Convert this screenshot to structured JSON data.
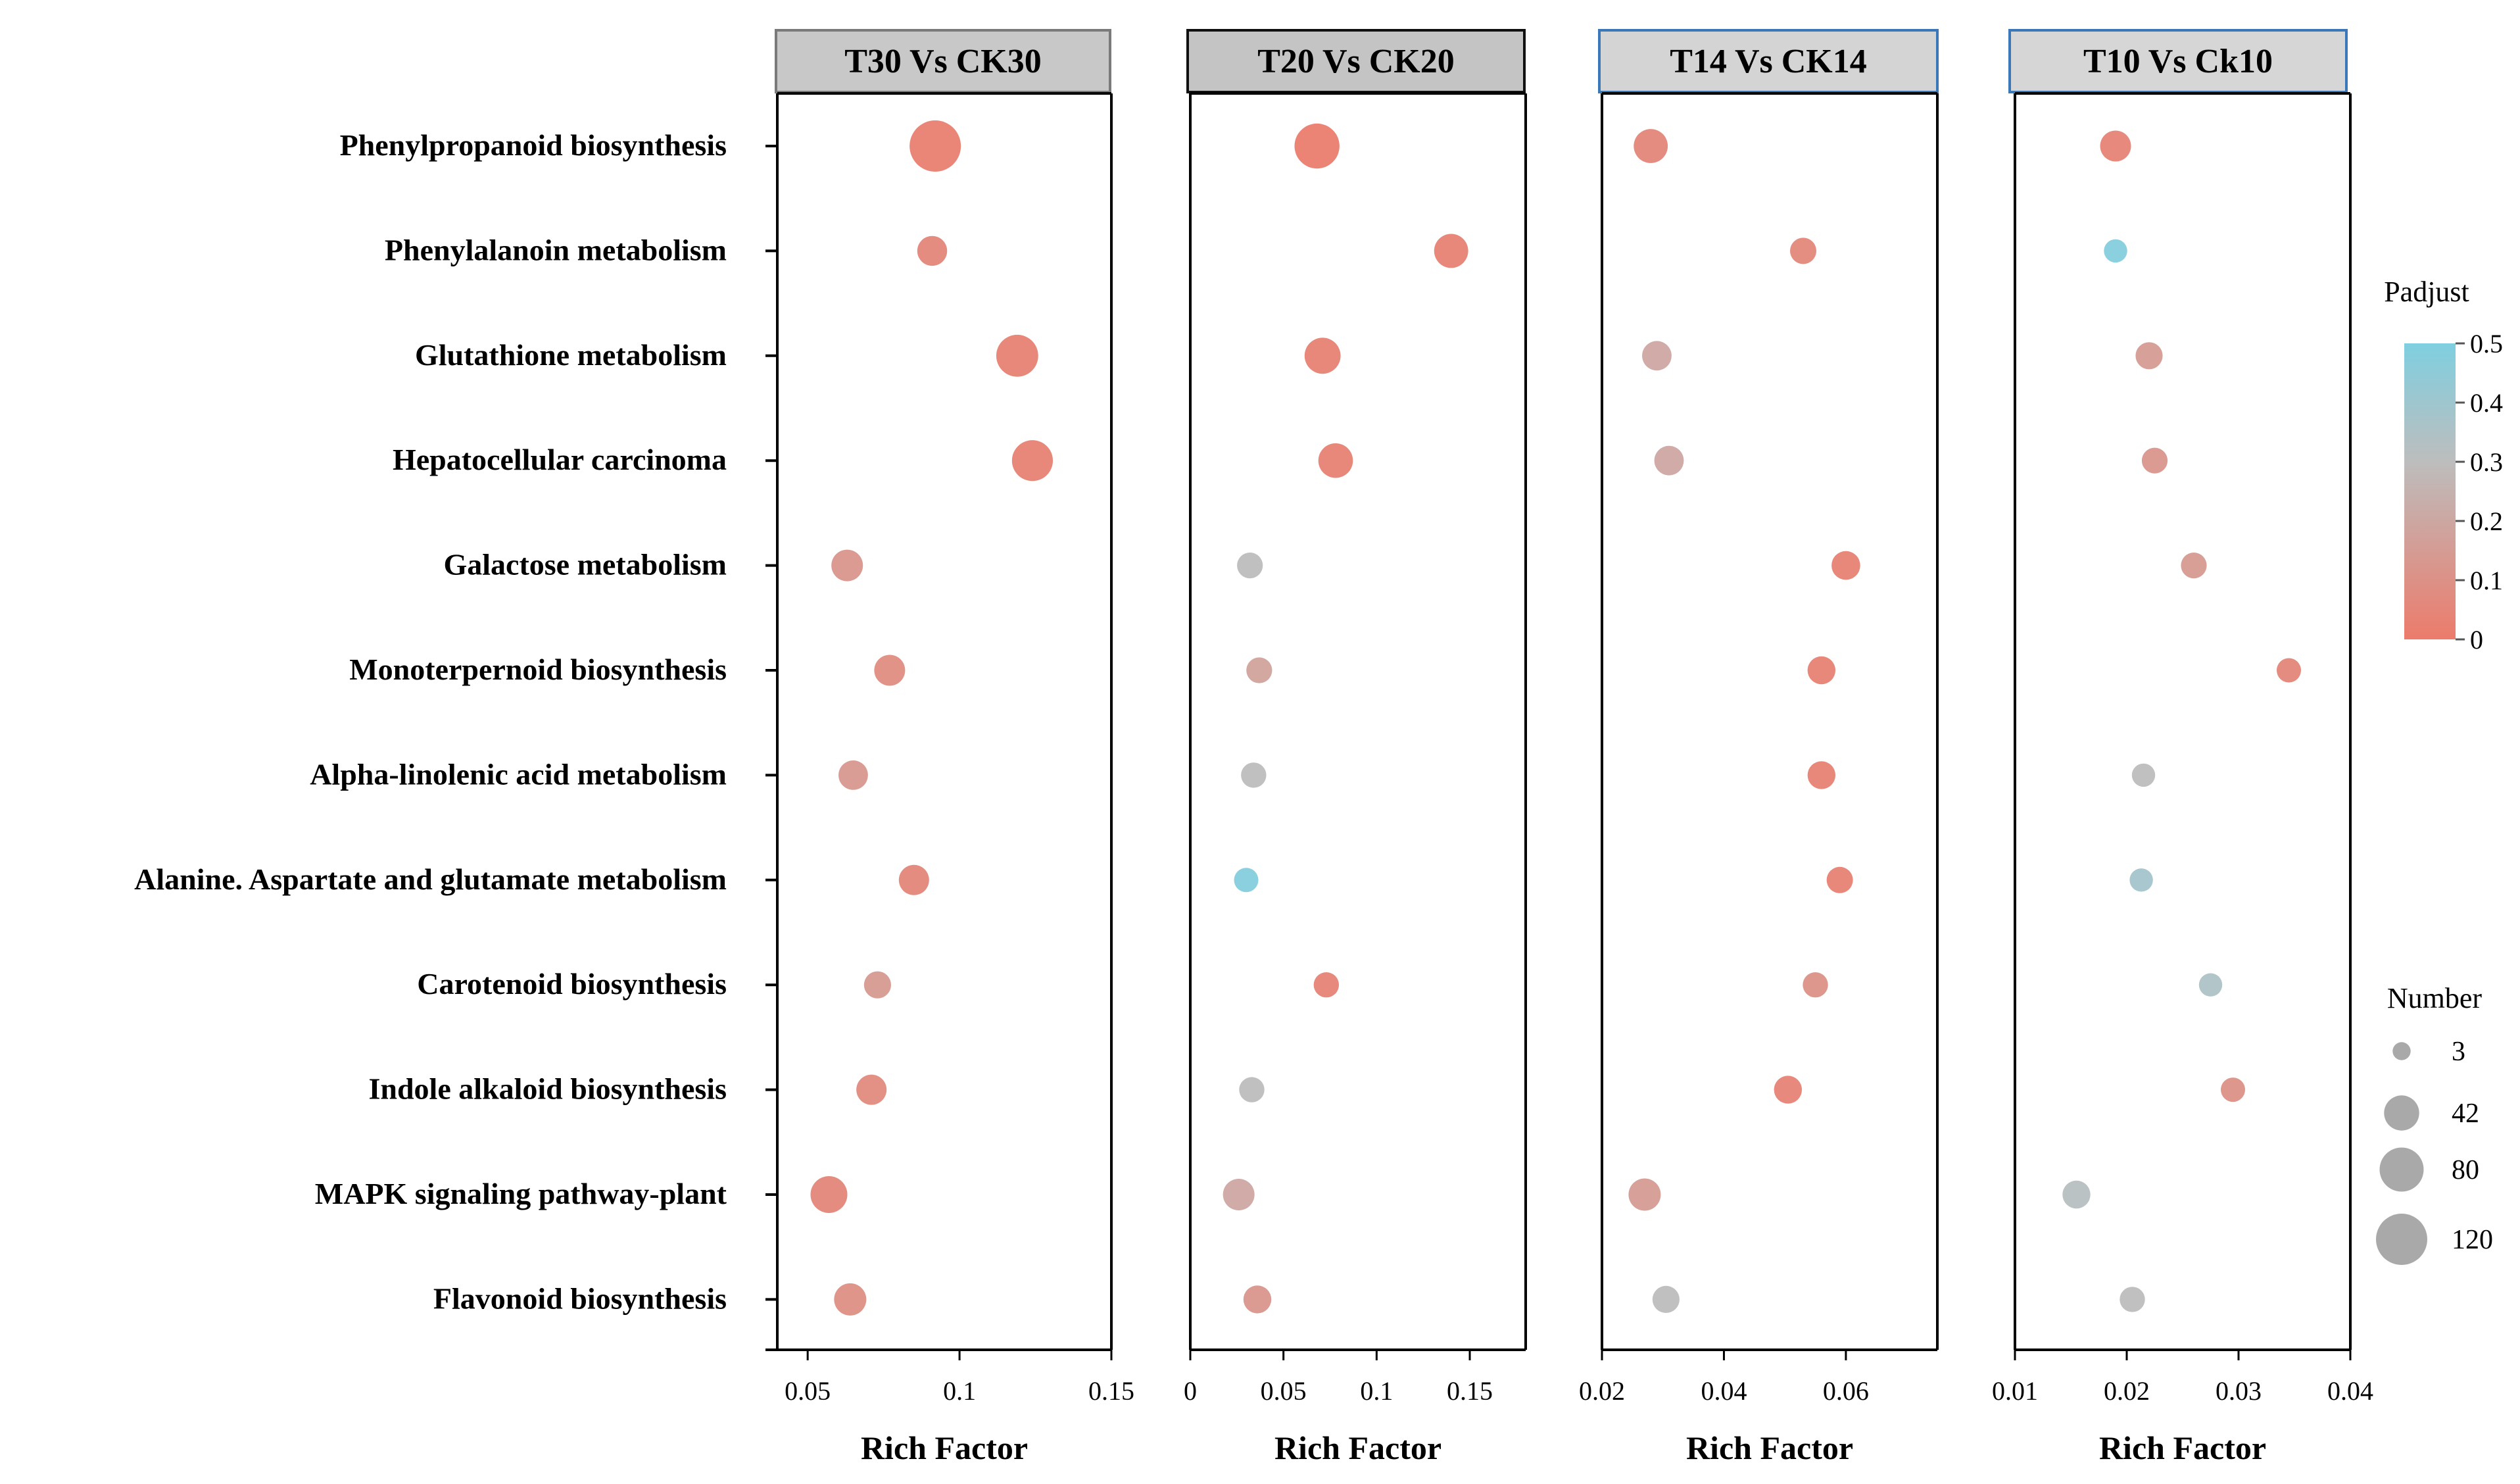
{
  "chart_data": {
    "type": "scatter",
    "subtype": "bubble",
    "categories": [
      "Phenylpropanoid biosynthesis",
      "Phenylalanoin metabolism",
      "Glutathione metabolism",
      "Hepatocellular carcinoma",
      "Galactose metabolism",
      "Monoterpernoid biosynthesis",
      "Alpha-linolenic acid metabolism",
      "Alanine. Aspartate and glutamate metabolism",
      "Carotenoid biosynthesis",
      "Indole alkaloid biosynthesis",
      "MAPK signaling pathway-plant",
      "Flavonoid biosynthesis"
    ],
    "panels": [
      {
        "title": "T30 Vs CK30",
        "title_style": "gray",
        "xlabel": "Rich Factor",
        "xlim": [
          0.04,
          0.15
        ],
        "xticks": [
          0.05,
          0.1,
          0.15
        ],
        "xtick_labels": [
          "0.05",
          "0.1",
          "0.15"
        ],
        "points": [
          {
            "x": 0.092,
            "number": 120,
            "padj": 0.02
          },
          {
            "x": 0.091,
            "number": 25,
            "padj": 0.05
          },
          {
            "x": 0.119,
            "number": 70,
            "padj": 0.03
          },
          {
            "x": 0.124,
            "number": 65,
            "padj": 0.03
          },
          {
            "x": 0.063,
            "number": 30,
            "padj": 0.12
          },
          {
            "x": 0.077,
            "number": 28,
            "padj": 0.08
          },
          {
            "x": 0.065,
            "number": 24,
            "padj": 0.13
          },
          {
            "x": 0.085,
            "number": 26,
            "padj": 0.05
          },
          {
            "x": 0.073,
            "number": 18,
            "padj": 0.14
          },
          {
            "x": 0.071,
            "number": 26,
            "padj": 0.07
          },
          {
            "x": 0.057,
            "number": 48,
            "padj": 0.05
          },
          {
            "x": 0.064,
            "number": 32,
            "padj": 0.09
          }
        ]
      },
      {
        "title": "T20 Vs CK20",
        "title_style": "dark",
        "xlabel": "Rich Factor",
        "xlim": [
          0,
          0.18
        ],
        "xticks": [
          0,
          0.05,
          0.1,
          0.15
        ],
        "xtick_labels": [
          "0",
          "0.05",
          "0.1",
          "0.15"
        ],
        "points": [
          {
            "x": 0.068,
            "number": 85,
            "padj": 0.01
          },
          {
            "x": 0.14,
            "number": 38,
            "padj": 0.03
          },
          {
            "x": 0.071,
            "number": 45,
            "padj": 0.03
          },
          {
            "x": 0.078,
            "number": 40,
            "padj": 0.03
          },
          {
            "x": 0.032,
            "number": 15,
            "padj": 0.3
          },
          {
            "x": 0.037,
            "number": 15,
            "padj": 0.18
          },
          {
            "x": 0.034,
            "number": 14,
            "padj": 0.3
          },
          {
            "x": 0.03,
            "number": 12,
            "padj": 0.48
          },
          {
            "x": 0.073,
            "number": 14,
            "padj": 0.04
          },
          {
            "x": 0.033,
            "number": 14,
            "padj": 0.3
          },
          {
            "x": 0.026,
            "number": 30,
            "padj": 0.2
          },
          {
            "x": 0.036,
            "number": 20,
            "padj": 0.12
          }
        ]
      },
      {
        "title": "T14 Vs CK14",
        "title_style": "blue",
        "xlabel": "Rich Factor",
        "xlim": [
          0.02,
          0.075
        ],
        "xticks": [
          0.02,
          0.04,
          0.06
        ],
        "xtick_labels": [
          "0.02",
          "0.04",
          "0.06"
        ],
        "points": [
          {
            "x": 0.028,
            "number": 38,
            "padj": 0.05
          },
          {
            "x": 0.053,
            "number": 16,
            "padj": 0.06
          },
          {
            "x": 0.029,
            "number": 24,
            "padj": 0.2
          },
          {
            "x": 0.031,
            "number": 24,
            "padj": 0.2
          },
          {
            "x": 0.06,
            "number": 22,
            "padj": 0.03
          },
          {
            "x": 0.056,
            "number": 20,
            "padj": 0.03
          },
          {
            "x": 0.056,
            "number": 20,
            "padj": 0.03
          },
          {
            "x": 0.059,
            "number": 16,
            "padj": 0.03
          },
          {
            "x": 0.055,
            "number": 14,
            "padj": 0.1
          },
          {
            "x": 0.0505,
            "number": 20,
            "padj": 0.04
          },
          {
            "x": 0.027,
            "number": 32,
            "padj": 0.15
          },
          {
            "x": 0.0305,
            "number": 18,
            "padj": 0.3
          }
        ]
      },
      {
        "title": "T10 Vs Ck10",
        "title_style": "blue",
        "xlabel": "Rich Factor",
        "xlim": [
          0.01,
          0.04
        ],
        "xticks": [
          0.01,
          0.02,
          0.03,
          0.04
        ],
        "xtick_labels": [
          "0.01",
          "0.02",
          "0.03",
          "0.04"
        ],
        "points": [
          {
            "x": 0.019,
            "number": 28,
            "padj": 0.04
          },
          {
            "x": 0.019,
            "number": 10,
            "padj": 0.48
          },
          {
            "x": 0.022,
            "number": 18,
            "padj": 0.15
          },
          {
            "x": 0.0225,
            "number": 15,
            "padj": 0.12
          },
          {
            "x": 0.026,
            "number": 15,
            "padj": 0.14
          },
          {
            "x": 0.0345,
            "number": 12,
            "padj": 0.05
          },
          {
            "x": 0.0215,
            "number": 10,
            "padj": 0.3
          },
          {
            "x": 0.0213,
            "number": 10,
            "padj": 0.38
          },
          {
            "x": 0.0275,
            "number": 10,
            "padj": 0.35
          },
          {
            "x": 0.0295,
            "number": 12,
            "padj": 0.1
          },
          {
            "x": 0.0155,
            "number": 20,
            "padj": 0.32
          },
          {
            "x": 0.0205,
            "number": 14,
            "padj": 0.3
          }
        ]
      }
    ],
    "colorbar": {
      "title": "Padjust",
      "range": [
        0,
        0.5
      ],
      "ticks": [
        0.5,
        0.4,
        0.3,
        0.2,
        0.1,
        0
      ],
      "tick_labels": [
        "0.5",
        "0.4",
        "0.3",
        "0.2",
        "0.1",
        "0"
      ],
      "low_color": "#ec7b6b",
      "mid_color": "#bdbdbd",
      "high_color": "#7fcfe0"
    },
    "size_legend": {
      "title": "Number",
      "values": [
        3,
        42,
        80,
        120
      ],
      "labels": [
        "3",
        "42",
        "80",
        "120"
      ],
      "color": "#a9a9a9"
    }
  }
}
